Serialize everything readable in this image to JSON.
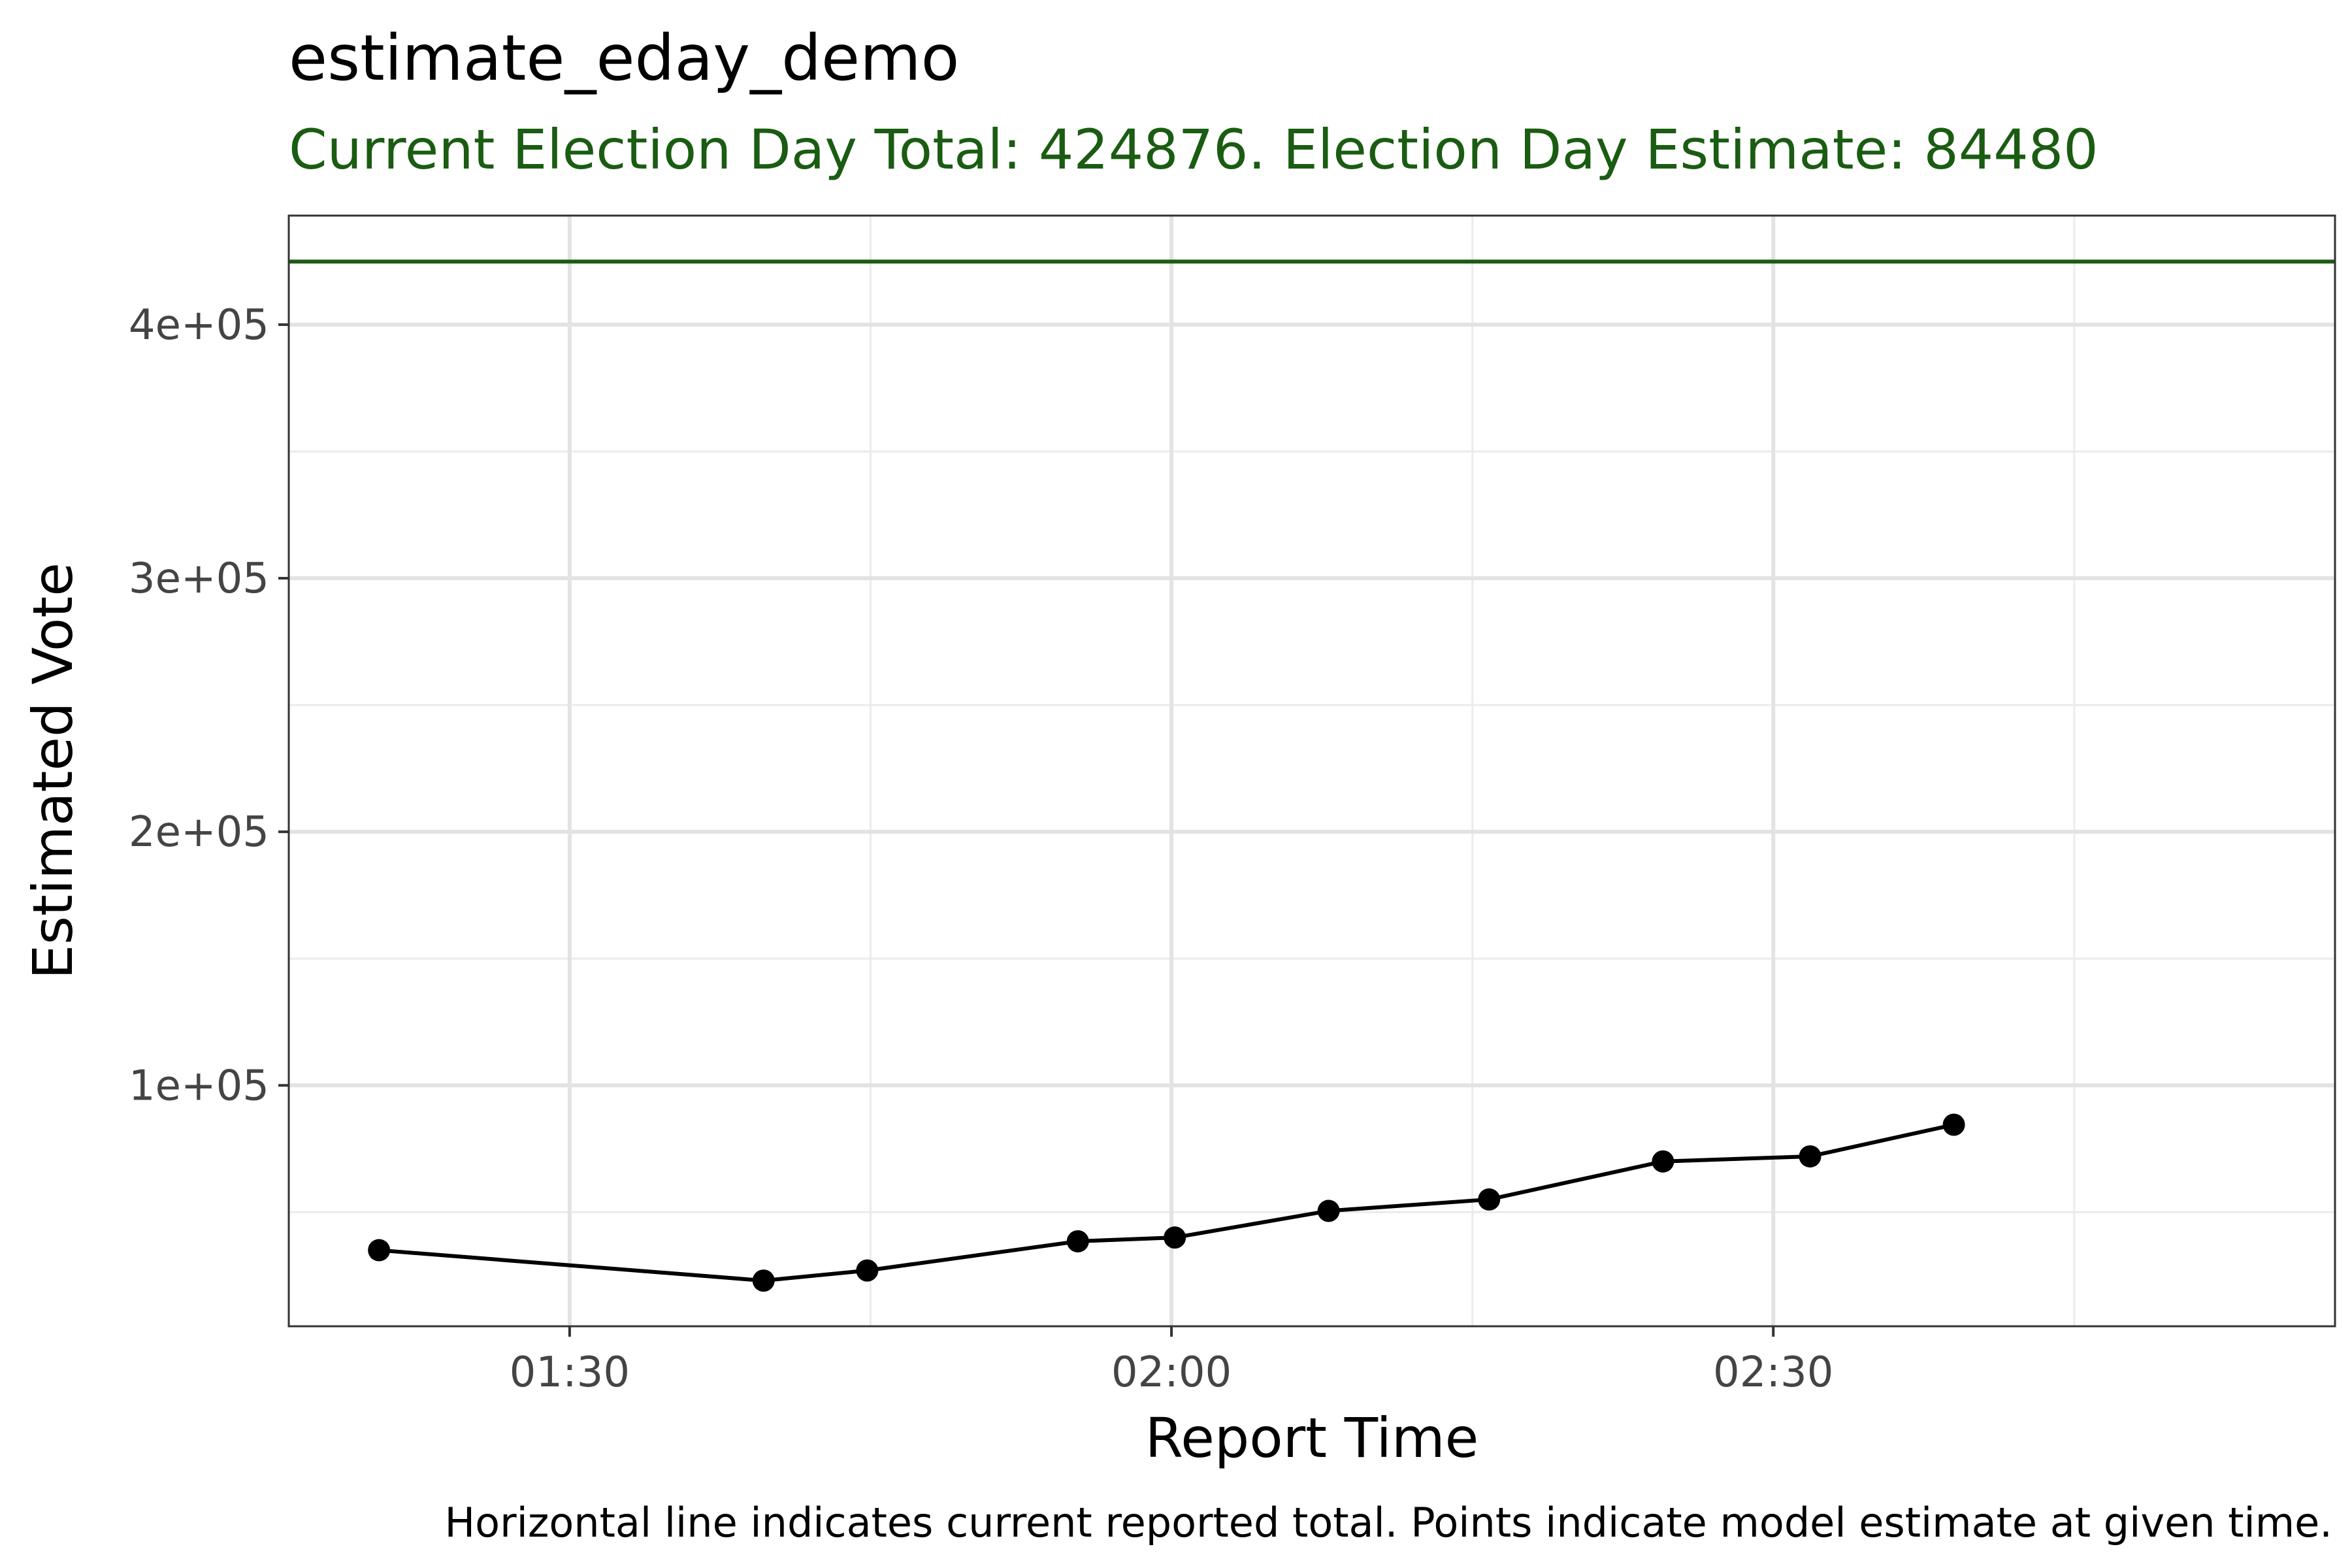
{
  "chart_data": {
    "type": "line",
    "title": "estimate_eday_demo",
    "subtitle": "Current Election Day Total: 424876. Election Day Estimate: 84480",
    "xlabel": "Report Time",
    "ylabel": "Estimated Vote",
    "caption": "Horizontal line indicates current reported total. Points indicate model estimate at given time.",
    "x_ticks": [
      "01:30",
      "02:00",
      "02:30"
    ],
    "y_ticks": [
      "1e+05",
      "2e+05",
      "3e+05",
      "4e+05"
    ],
    "xlim": [
      "01:16",
      "02:58"
    ],
    "ylim": [
      5000,
      443000
    ],
    "grid": true,
    "reference_line": {
      "y": 424876,
      "color": "#1a5c12"
    },
    "series": [
      {
        "color": "#000000",
        "points": [
          {
            "x": "01:20:30",
            "y": 35000
          },
          {
            "x": "01:39:40",
            "y": 23000
          },
          {
            "x": "01:44:50",
            "y": 27000
          },
          {
            "x": "01:55:20",
            "y": 38500
          },
          {
            "x": "02:00:10",
            "y": 40000
          },
          {
            "x": "02:07:50",
            "y": 50500
          },
          {
            "x": "02:15:50",
            "y": 55000
          },
          {
            "x": "02:24:30",
            "y": 70000
          },
          {
            "x": "02:31:50",
            "y": 72000
          },
          {
            "x": "02:39:00",
            "y": 84480
          }
        ]
      }
    ]
  }
}
